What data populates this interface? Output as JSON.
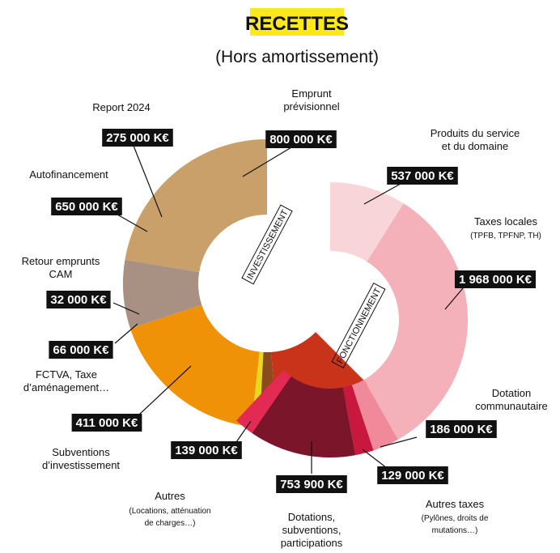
{
  "title": "RECETTES",
  "subtitle": "(Hors amortissement)",
  "chart_data": [
    {
      "type": "donut",
      "title": "INVESTISSEMENT",
      "categories": [
        "Emprunt\nprévisionnel",
        "Report 2024",
        "Autofinancement",
        "Retour emprunts\nCAM",
        "FCTVA, Taxe\nd’aménagement…",
        "Subventions\nd’investissement"
      ],
      "values": [
        800000,
        275000,
        650000,
        32000,
        66000,
        411000
      ],
      "value_labels": [
        "800 000 K€",
        "275 000 K€",
        "650 000 K€",
        "32 000 K€",
        "66 000 K€",
        "411 000 K€"
      ],
      "notes": [
        null,
        null,
        null,
        null,
        null,
        null
      ],
      "colors": [
        "#c9a069",
        "#a89082",
        "#f09208",
        "#e6d91e",
        "#8c4a1e",
        "#c9331a"
      ]
    },
    {
      "type": "donut",
      "title": "FONCTIONNEMENT",
      "categories": [
        "Produits du service\net du domaine",
        "Taxes locales",
        "Dotation\ncommunautaire",
        "Autres taxes",
        "Dotations,\nsubventions,\nparticipations",
        "Autres"
      ],
      "values": [
        537000,
        1968000,
        186000,
        129000,
        753900,
        139000
      ],
      "value_labels": [
        "537 000 K€",
        "1 968 000 K€",
        "186 000 K€",
        "129 000 K€",
        "753 900 K€",
        "139 000 K€"
      ],
      "notes": [
        null,
        "(TPFB, TPFNP, TH)",
        null,
        "(Pylônes, droits de\nmutations…)",
        null,
        "(Locations, atténuation\nde charges…)"
      ],
      "colors": [
        "#f8d5d9",
        "#f4b1b9",
        "#f08a9a",
        "#c8183e",
        "#7b1529",
        "#e22a52"
      ]
    }
  ]
}
